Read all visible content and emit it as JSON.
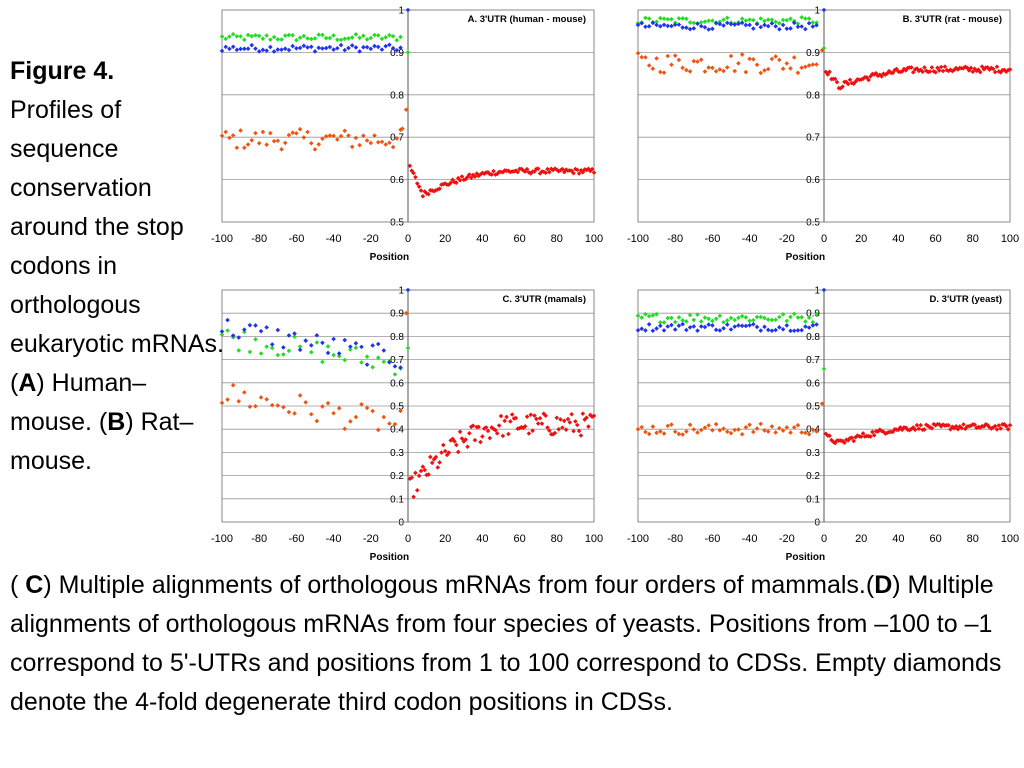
{
  "caption": {
    "figure_label": "Figure 4.",
    "left_text": "Profiles of sequence conservation around the stop codons in orthologous eukaryotic mRNAs. (",
    "label_a": "A",
    "text_a": ") Human–mouse. (",
    "label_b": "B",
    "text_b": ") Rat–mouse.",
    "bottom_open": "( ",
    "label_c": "C",
    "text_c": ") Multiple alignments of orthologous mRNAs from four orders of mammals.(",
    "label_d": "D",
    "text_d": ") Multiple alignments of orthologous mRNAs from four species of yeasts. Positions from –100 to –1 correspond to 5'-UTRs and positions from 1 to 100 correspond to CDSs. Empty diamonds denote the 4-fold degenerate third codon positions in CDSs."
  },
  "colors": {
    "green": "#22dd22",
    "blue": "#2233ee",
    "orange": "#ee5511",
    "red": "#ee1111",
    "grid": "#999999",
    "frame": "#888888"
  },
  "chart_data": [
    {
      "id": "A",
      "type": "scatter",
      "title": "A. 3'UTR (human - mouse)",
      "xlabel": "Position",
      "ylabel": "",
      "xlim": [
        -100,
        100
      ],
      "ylim": [
        0.5,
        1
      ],
      "yticks": [
        "0.5",
        "0.6",
        "0.7",
        "0.8",
        "0.9",
        "1"
      ],
      "xticks": [
        "-100",
        "-80",
        "-60",
        "-40",
        "-20",
        "0",
        "20",
        "40",
        "60",
        "80",
        "100"
      ],
      "grid": true,
      "series": [
        {
          "color": "green",
          "region": "utr",
          "mode": "flat",
          "level": 0.935,
          "noise": 0.004,
          "stop_value": 0.9
        },
        {
          "color": "blue",
          "region": "utr",
          "mode": "flat",
          "level": 0.91,
          "noise": 0.004,
          "stop_value": 1.0
        },
        {
          "color": "orange",
          "region": "utr",
          "mode": "flat",
          "level": 0.695,
          "noise": 0.012,
          "near_stop": [
            [
              -3,
              0.72
            ],
            [
              -1,
              0.765
            ]
          ]
        },
        {
          "color": "red",
          "region": "cds",
          "mode": "recover",
          "start": 0.63,
          "dip": 0.565,
          "end": 0.62,
          "noise": 0.006
        }
      ]
    },
    {
      "id": "B",
      "type": "scatter",
      "title": "B. 3'UTR (rat - mouse)",
      "xlabel": "Position",
      "ylabel": "",
      "xlim": [
        -100,
        100
      ],
      "ylim": [
        0.5,
        1
      ],
      "yticks": [
        "0.5",
        "0.6",
        "0.7",
        "0.8",
        "0.9",
        "1"
      ],
      "xticks": [
        "-100",
        "-80",
        "-60",
        "-40",
        "-20",
        "0",
        "20",
        "40",
        "60",
        "80",
        "100"
      ],
      "grid": true,
      "series": [
        {
          "color": "green",
          "region": "utr",
          "mode": "flat",
          "level": 0.975,
          "noise": 0.004,
          "stop_value": 0.91
        },
        {
          "color": "blue",
          "region": "utr",
          "mode": "flat",
          "level": 0.962,
          "noise": 0.004,
          "stop_value": 1.0
        },
        {
          "color": "orange",
          "region": "utr",
          "mode": "flat",
          "level": 0.875,
          "noise": 0.012,
          "near_stop": [
            [
              -1,
              0.905
            ]
          ]
        },
        {
          "color": "red",
          "region": "cds",
          "mode": "recover",
          "start": 0.86,
          "dip": 0.82,
          "end": 0.86,
          "noise": 0.007
        }
      ]
    },
    {
      "id": "C",
      "type": "scatter",
      "title": "C. 3'UTR (mamals)",
      "xlabel": "Position",
      "ylabel": "",
      "xlim": [
        -100,
        100
      ],
      "ylim": [
        0,
        1
      ],
      "yticks": [
        "0",
        "0.1",
        "0.2",
        "0.3",
        "0.4",
        "0.5",
        "0.6",
        "0.7",
        "0.8",
        "0.9",
        "1"
      ],
      "xticks": [
        "-100",
        "-80",
        "-60",
        "-40",
        "-20",
        "0",
        "20",
        "40",
        "60",
        "80",
        "100"
      ],
      "grid": true,
      "series": [
        {
          "color": "green",
          "region": "utr_sparse",
          "mode": "trend",
          "from": 0.8,
          "to": 0.68,
          "noise": 0.05,
          "step": 3,
          "stop_value": 0.75
        },
        {
          "color": "blue",
          "region": "utr_sparse",
          "mode": "trend",
          "from": 0.84,
          "to": 0.7,
          "noise": 0.05,
          "step": 3,
          "stop_value": 1.0
        },
        {
          "color": "orange",
          "region": "utr_sparse",
          "mode": "trend",
          "from": 0.55,
          "to": 0.42,
          "noise": 0.06,
          "step": 3,
          "near_stop": [
            [
              -1,
              0.9
            ]
          ]
        },
        {
          "color": "red",
          "region": "cds",
          "mode": "recover",
          "start": 0.14,
          "dip": 0.2,
          "end": 0.42,
          "noise": 0.05
        }
      ]
    },
    {
      "id": "D",
      "type": "scatter",
      "title": "D. 3'UTR (yeast)",
      "xlabel": "Position",
      "ylabel": "",
      "xlim": [
        -100,
        100
      ],
      "ylim": [
        0,
        1
      ],
      "yticks": [
        "0",
        "0.1",
        "0.2",
        "0.3",
        "0.4",
        "0.5",
        "0.6",
        "0.7",
        "0.8",
        "0.9",
        "1"
      ],
      "xticks": [
        "-100",
        "-80",
        "-60",
        "-40",
        "-20",
        "0",
        "20",
        "40",
        "60",
        "80",
        "100"
      ],
      "grid": true,
      "series": [
        {
          "color": "green",
          "region": "utr",
          "mode": "flat",
          "level": 0.88,
          "noise": 0.01,
          "stop_value": 0.66
        },
        {
          "color": "blue",
          "region": "utr",
          "mode": "flat",
          "level": 0.84,
          "noise": 0.008,
          "stop_value": 1.0
        },
        {
          "color": "orange",
          "region": "utr",
          "mode": "flat",
          "level": 0.4,
          "noise": 0.012,
          "near_stop": [
            [
              -1,
              0.51
            ]
          ]
        },
        {
          "color": "red",
          "region": "cds",
          "mode": "recover",
          "start": 0.37,
          "dip": 0.34,
          "end": 0.41,
          "noise": 0.012
        }
      ]
    }
  ]
}
